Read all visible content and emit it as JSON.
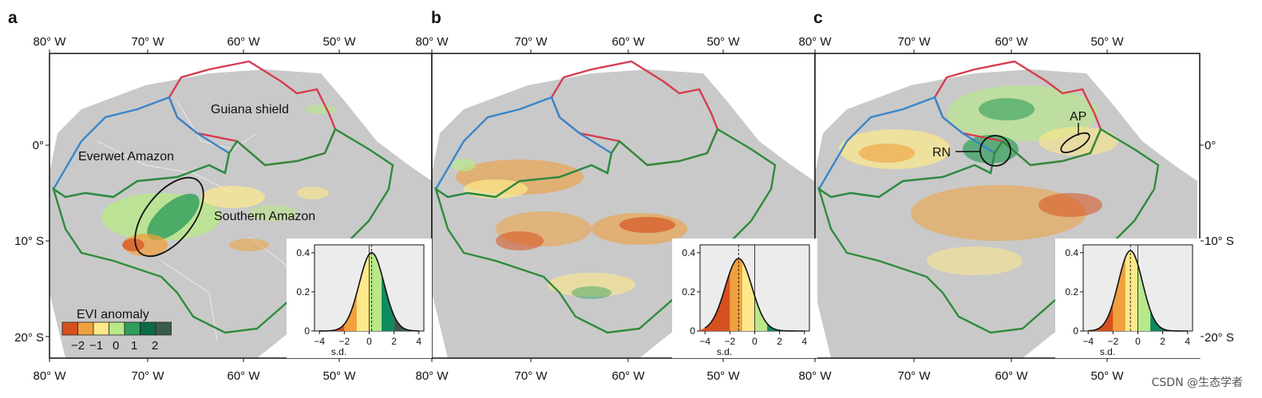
{
  "figure": {
    "panels": [
      {
        "letter": "a",
        "annotations": [
          "Guiana shield",
          "Everwet Amazon",
          "Southern Amazon"
        ]
      },
      {
        "letter": "b",
        "annotations": []
      },
      {
        "letter": "c",
        "annotations": [
          "RN",
          "AP"
        ]
      }
    ],
    "longitude_ticks": [
      "80° W",
      "70° W",
      "60° W",
      "50° W"
    ],
    "latitude_ticks": [
      "0°",
      "10° S",
      "20° S"
    ],
    "legend": {
      "title": "EVI anomaly",
      "labels": [
        "−2",
        "−1",
        "0",
        "1",
        "2"
      ]
    },
    "region_colors": {
      "guiana_shield": "#d43d51",
      "everwet_amazon": "#3a86c8",
      "southern_amazon": "#2e8b3a"
    },
    "anomaly_colors": [
      "#d7501f",
      "#f0a03c",
      "#fde98a",
      "#b9e88a",
      "#2f9e5a",
      "#0b6b45",
      "#3d5b4a"
    ]
  },
  "chart_data": [
    {
      "type": "area",
      "panel": "a",
      "title": "",
      "xlabel": "s.d.",
      "ylabel": "",
      "x_ticks": [
        "−4",
        "−2",
        "0",
        "2",
        "4"
      ],
      "y_ticks": [
        "0",
        "0.2",
        "0.4"
      ],
      "xlim": [
        -4.4,
        4.4
      ],
      "ylim": [
        0,
        0.44
      ],
      "mean": 0.2,
      "peak": 0.4
    },
    {
      "type": "area",
      "panel": "b",
      "title": "",
      "xlabel": "s.d.",
      "ylabel": "",
      "x_ticks": [
        "−4",
        "−2",
        "0",
        "2",
        "4"
      ],
      "y_ticks": [
        "0",
        "0.2",
        "0.4"
      ],
      "xlim": [
        -4.4,
        4.4
      ],
      "ylim": [
        0,
        0.44
      ],
      "mean": -1.3,
      "peak": 0.37
    },
    {
      "type": "area",
      "panel": "c",
      "title": "",
      "xlabel": "s.d.",
      "ylabel": "",
      "x_ticks": [
        "−4",
        "−2",
        "0",
        "2",
        "4"
      ],
      "y_ticks": [
        "0",
        "0.2",
        "0.4"
      ],
      "xlim": [
        -4.4,
        4.4
      ],
      "ylim": [
        0,
        0.44
      ],
      "mean": -0.6,
      "peak": 0.41
    }
  ],
  "watermark": "CSDN @生态学者"
}
